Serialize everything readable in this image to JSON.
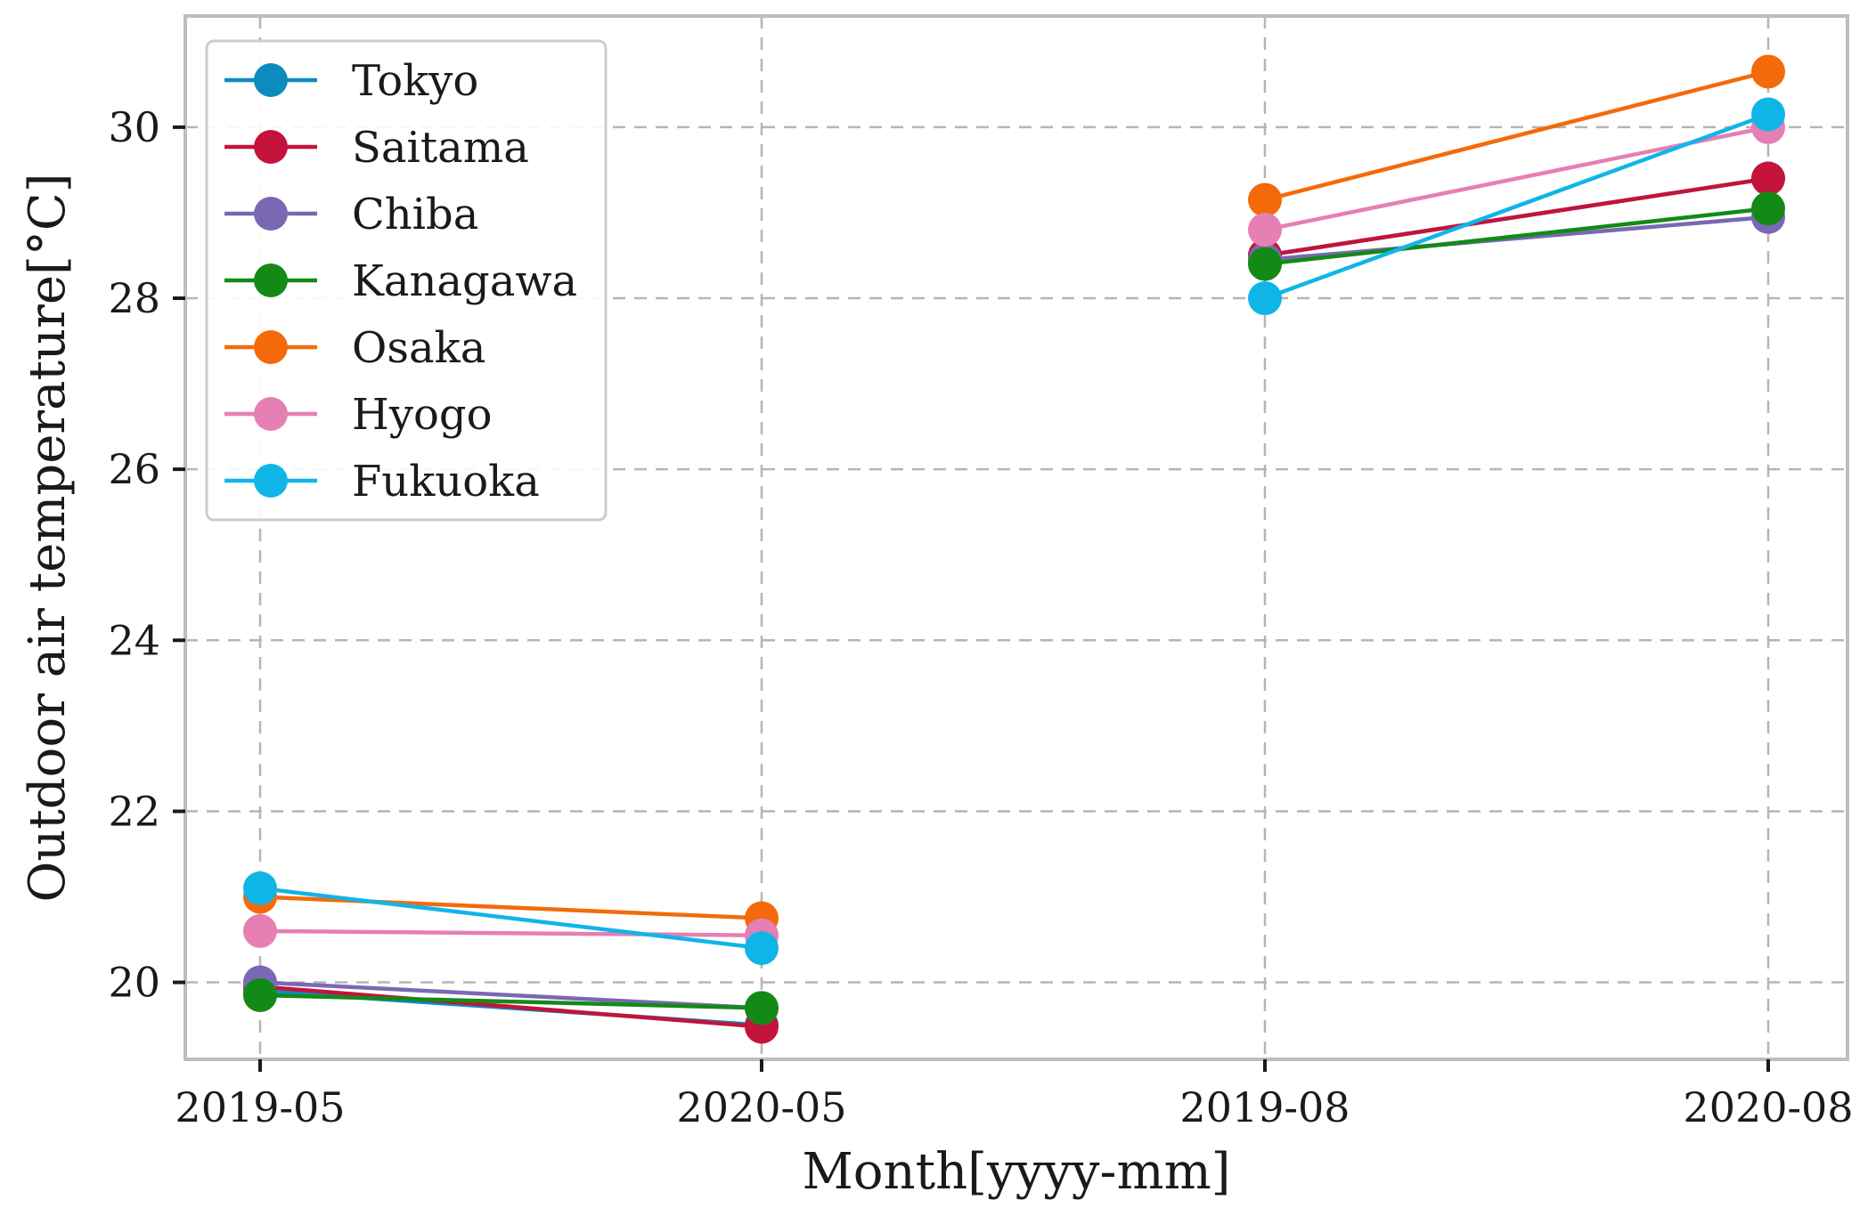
{
  "chart_data": {
    "type": "line",
    "title": "",
    "xlabel": "Month[yyyy-mm]",
    "ylabel": "Outdoor air temperature[°C]",
    "categories": [
      "2019-05",
      "2020-05",
      "2019-08",
      "2020-08"
    ],
    "segments": [
      [
        0,
        1
      ],
      [
        2,
        3
      ]
    ],
    "ylim": [
      19.1,
      31.3
    ],
    "yticks": [
      20,
      22,
      24,
      26,
      28,
      30
    ],
    "grid": true,
    "legend_position": "top-left",
    "series": [
      {
        "name": "Tokyo",
        "color": "#0c8bbf",
        "values": [
          19.9,
          19.5,
          28.5,
          29.4
        ]
      },
      {
        "name": "Saitama",
        "color": "#c4133b",
        "values": [
          19.95,
          19.48,
          28.5,
          29.4
        ]
      },
      {
        "name": "Chiba",
        "color": "#7a68b3",
        "values": [
          20.0,
          19.7,
          28.45,
          28.95
        ]
      },
      {
        "name": "Kanagawa",
        "color": "#138a16",
        "values": [
          19.85,
          19.7,
          28.4,
          29.05
        ]
      },
      {
        "name": "Osaka",
        "color": "#f46a0a",
        "values": [
          21.0,
          20.75,
          29.15,
          30.65
        ]
      },
      {
        "name": "Hyogo",
        "color": "#e57fb4",
        "values": [
          20.6,
          20.55,
          28.8,
          30.0
        ]
      },
      {
        "name": "Fukuoka",
        "color": "#10b5e8",
        "values": [
          21.1,
          20.4,
          28.0,
          30.15
        ]
      }
    ]
  }
}
